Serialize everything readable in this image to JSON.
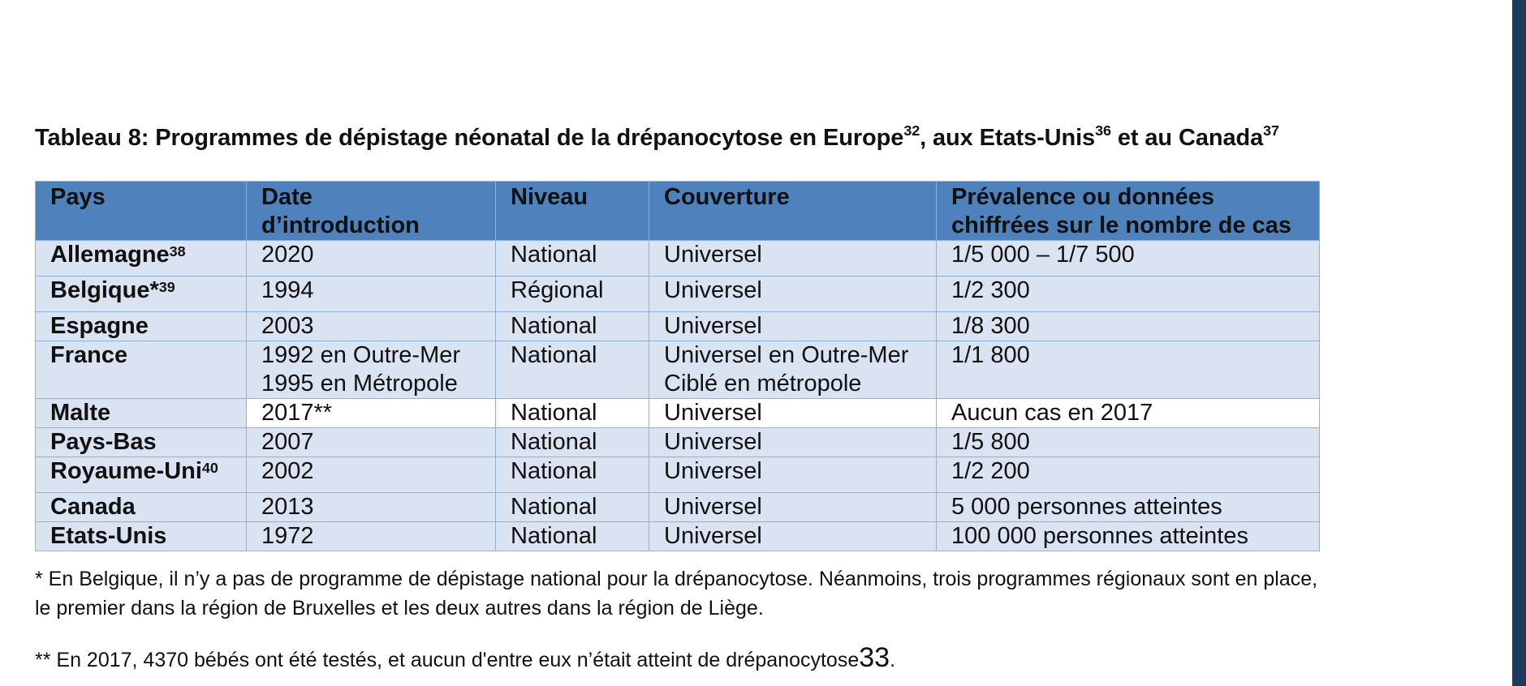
{
  "caption": {
    "text": "Tableau 8: Programmes de dépistage néonatal de la drépanocytose en Europe",
    "ref1": "32",
    "mid": ", aux Etats-Unis",
    "ref2": "36",
    "end": " et au Canada",
    "ref3": "37"
  },
  "table": {
    "headers": [
      [
        "Pays",
        ""
      ],
      [
        "Date",
        "d’introduction"
      ],
      [
        "Niveau",
        ""
      ],
      [
        "Couverture",
        ""
      ],
      [
        "Prévalence ou données",
        "chiffrées sur le nombre de cas"
      ]
    ],
    "rows": [
      {
        "pays": "Allemagne",
        "ref": "38",
        "date": [
          "2020"
        ],
        "niveau": "National",
        "couverture": [
          "Universel"
        ],
        "prevalence": "1/5 000 – 1/7 500"
      },
      {
        "pays": "Belgique*",
        "ref": "39",
        "date": [
          "1994"
        ],
        "niveau": "Régional",
        "couverture": [
          "Universel"
        ],
        "prevalence": "1/2 300"
      },
      {
        "pays": "Espagne",
        "ref": "",
        "date": [
          "2003"
        ],
        "niveau": "National",
        "couverture": [
          "Universel"
        ],
        "prevalence": "1/8 300"
      },
      {
        "pays": "France",
        "ref": "",
        "date": [
          "1992 en Outre-Mer",
          "1995 en Métropole"
        ],
        "niveau": "National",
        "couverture": [
          "Universel en Outre-Mer",
          "Ciblé en métropole"
        ],
        "prevalence": "1/1 800"
      },
      {
        "pays": "Malte",
        "ref": "",
        "date": [
          "2017**"
        ],
        "niveau": "National",
        "couverture": [
          "Universel"
        ],
        "prevalence": "Aucun cas en 2017"
      },
      {
        "pays": "Pays-Bas",
        "ref": "",
        "date": [
          "2007"
        ],
        "niveau": "National",
        "couverture": [
          "Universel"
        ],
        "prevalence": "1/5 800"
      },
      {
        "pays": "Royaume-Uni",
        "ref": "40",
        "date": [
          "2002"
        ],
        "niveau": "National",
        "couverture": [
          "Universel"
        ],
        "prevalence": "1/2 200"
      },
      {
        "pays": "Canada",
        "ref": "",
        "date": [
          "2013"
        ],
        "niveau": "National",
        "couverture": [
          "Universel"
        ],
        "prevalence": "5 000 personnes atteintes"
      },
      {
        "pays": "Etats-Unis",
        "ref": "",
        "date": [
          "1972"
        ],
        "niveau": "National",
        "couverture": [
          "Universel"
        ],
        "prevalence": "100 000 personnes atteintes"
      }
    ]
  },
  "footnotes": {
    "note1_line1": "* En Belgique, il n’y a pas de programme de dépistage national pour la drépanocytose. Néanmoins, trois programmes régionaux sont en place,",
    "note1_line2": "le premier dans la région de Bruxelles et les deux autres dans la région de Liège.",
    "note2_text": "** En 2017, 4370 bébés ont été testés, et aucun d'entre eux n’était atteint de drépanocytose",
    "note2_ref": "33",
    "note2_end": "."
  },
  "colors": {
    "header_bg": "#4f81bd",
    "row_bg": "#dae3f1",
    "border": "#8eb0dc",
    "side_bar": "#1d3a5f"
  }
}
